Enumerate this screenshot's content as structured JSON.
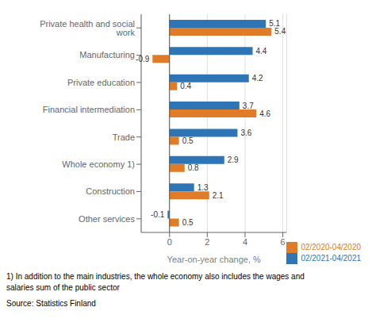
{
  "chart_data": {
    "type": "bar",
    "orientation": "horizontal",
    "categories": [
      "Private health and social work",
      "Manufacturing",
      "Private education",
      "Financial intermediation",
      "Trade",
      "Whole economy 1)",
      "Construction",
      "Other services"
    ],
    "series": [
      {
        "name": "02/2021-04/2021",
        "color": "#2e75b6",
        "values": [
          5.1,
          4.4,
          4.2,
          3.7,
          3.6,
          2.9,
          1.3,
          -0.1
        ]
      },
      {
        "name": "02/2020-04/2020",
        "color": "#e07b28",
        "values": [
          5.4,
          -0.9,
          0.4,
          4.6,
          0.5,
          0.8,
          2.1,
          0.5
        ]
      }
    ],
    "xlabel": "Year-on-year change, %",
    "xlim": [
      -1.5,
      6.2
    ],
    "xticks": [
      0,
      2,
      4,
      6
    ],
    "grid": true,
    "legend": "lower right",
    "data_labels": true,
    "annotations": [
      "1) In addition to the main industries, the whole economy also includes the wages and",
      "salaries sum of the public sector",
      "Source: Statistics Finland"
    ]
  }
}
